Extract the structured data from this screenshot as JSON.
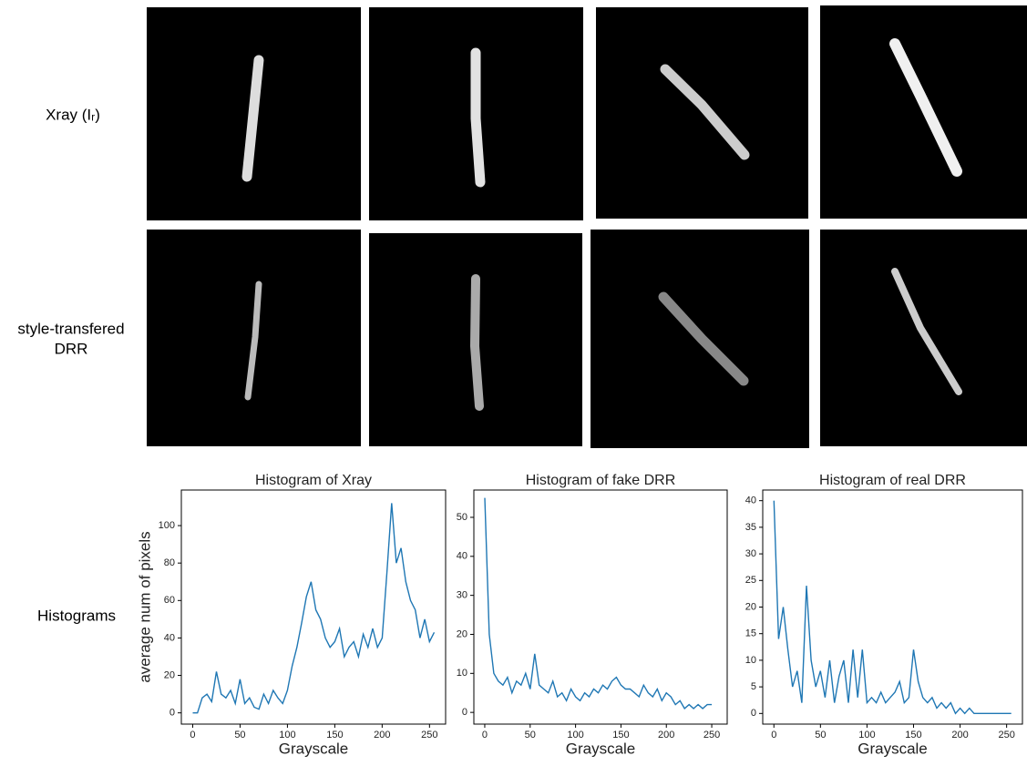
{
  "row_labels": [
    "Xray (Iᵣ)",
    "style-transfered",
    "DRR",
    "Histograms"
  ],
  "chart_data": [
    {
      "type": "line",
      "title": "Histogram of Xray",
      "x_label": "Grayscale",
      "y_label": "average num of pixels",
      "color": "#1f77b4",
      "x": [
        0,
        5,
        10,
        15,
        20,
        25,
        30,
        35,
        40,
        45,
        50,
        55,
        60,
        65,
        70,
        75,
        80,
        85,
        90,
        95,
        100,
        105,
        110,
        115,
        120,
        125,
        130,
        135,
        140,
        145,
        150,
        155,
        160,
        165,
        170,
        175,
        180,
        185,
        190,
        195,
        200,
        205,
        210,
        215,
        220,
        225,
        230,
        235,
        240,
        245,
        250,
        255
      ],
      "values": [
        0,
        0,
        8,
        10,
        6,
        22,
        10,
        8,
        12,
        5,
        18,
        5,
        8,
        3,
        2,
        10,
        5,
        12,
        8,
        5,
        12,
        25,
        35,
        48,
        62,
        70,
        55,
        50,
        40,
        35,
        38,
        45,
        30,
        35,
        38,
        30,
        42,
        35,
        45,
        35,
        40,
        75,
        112,
        80,
        88,
        70,
        60,
        55,
        40,
        50,
        38,
        43
      ],
      "xlim": [
        -12,
        267
      ],
      "xticks": [
        0,
        50,
        100,
        150,
        200,
        250
      ],
      "ylim": [
        -6,
        119
      ],
      "yticks": [
        0,
        20,
        40,
        60,
        80,
        100
      ]
    },
    {
      "type": "line",
      "title": "Histogram of fake DRR",
      "x_label": "Grayscale",
      "color": "#1f77b4",
      "x": [
        0,
        5,
        10,
        15,
        20,
        25,
        30,
        35,
        40,
        45,
        50,
        55,
        60,
        65,
        70,
        75,
        80,
        85,
        90,
        95,
        100,
        105,
        110,
        115,
        120,
        125,
        130,
        135,
        140,
        145,
        150,
        155,
        160,
        165,
        170,
        175,
        180,
        185,
        190,
        195,
        200,
        205,
        210,
        215,
        220,
        225,
        230,
        235,
        240,
        245,
        250
      ],
      "values": [
        55,
        20,
        10,
        8,
        7,
        9,
        5,
        8,
        7,
        10,
        6,
        15,
        7,
        6,
        5,
        8,
        4,
        5,
        3,
        6,
        4,
        3,
        5,
        4,
        6,
        5,
        7,
        6,
        8,
        9,
        7,
        6,
        6,
        5,
        4,
        7,
        5,
        4,
        6,
        3,
        5,
        4,
        2,
        3,
        1,
        2,
        1,
        2,
        1,
        2,
        2
      ],
      "xlim": [
        -12,
        267
      ],
      "xticks": [
        0,
        50,
        100,
        150,
        200,
        250
      ],
      "ylim": [
        -3,
        57
      ],
      "yticks": [
        0,
        10,
        20,
        30,
        40,
        50
      ]
    },
    {
      "type": "line",
      "title": "Histogram of real DRR",
      "x_label": "Grayscale",
      "color": "#1f77b4",
      "x": [
        0,
        5,
        10,
        15,
        20,
        25,
        30,
        35,
        40,
        45,
        50,
        55,
        60,
        65,
        70,
        75,
        80,
        85,
        90,
        95,
        100,
        105,
        110,
        115,
        120,
        125,
        130,
        135,
        140,
        145,
        150,
        155,
        160,
        165,
        170,
        175,
        180,
        185,
        190,
        195,
        200,
        205,
        210,
        215,
        220,
        225,
        230,
        235,
        240,
        245,
        250,
        255
      ],
      "values": [
        40,
        14,
        20,
        12,
        5,
        8,
        2,
        24,
        10,
        5,
        8,
        3,
        10,
        2,
        7,
        10,
        2,
        12,
        3,
        12,
        2,
        3,
        2,
        4,
        2,
        3,
        4,
        6,
        2,
        3,
        12,
        6,
        3,
        2,
        3,
        1,
        2,
        1,
        2,
        0,
        1,
        0,
        1,
        0,
        0,
        0,
        0,
        0,
        0,
        0,
        0,
        0
      ],
      "xlim": [
        -12,
        267
      ],
      "xticks": [
        0,
        50,
        100,
        150,
        200,
        250
      ],
      "ylim": [
        -2,
        42
      ],
      "yticks": [
        0,
        5,
        10,
        15,
        20,
        25,
        30,
        35,
        40
      ]
    }
  ]
}
